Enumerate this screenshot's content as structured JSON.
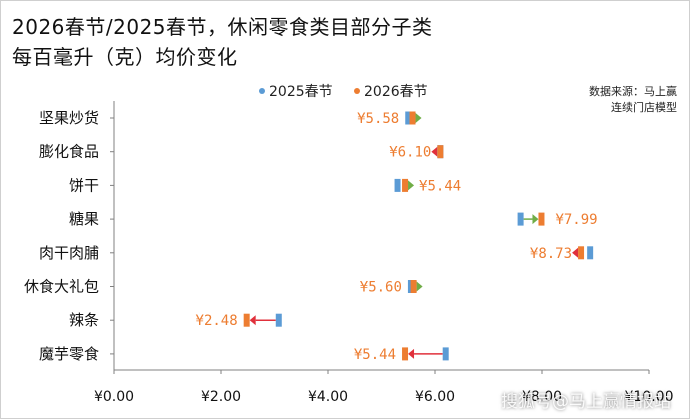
{
  "title_line1": "2026春节/2025春节，休闲零食类目部分子类",
  "title_line2": "每百毫升（克）均价变化",
  "source_line1": "数据来源：马上赢",
  "source_line2": "连续门店模型",
  "watermark": "搜狐号@马上赢情报站",
  "colors": {
    "y2025": "#5b9bd5",
    "y2026": "#ed7d31",
    "arrow_up": "#70ad47",
    "arrow_down": "#e0303b",
    "axis": "#808080"
  },
  "chart_data": {
    "type": "dot-plot",
    "title": "2026春节/2025春节，休闲零食类目部分子类 每百毫升（克）均价变化",
    "legend": [
      "2025春节",
      "2026春节"
    ],
    "legend_position": "top",
    "xlim": [
      0,
      10
    ],
    "x_ticks": [
      "¥0.00",
      "¥2.00",
      "¥4.00",
      "¥6.00",
      "¥8.00",
      "¥10.00"
    ],
    "grid": false,
    "categories": [
      "坚果炒货",
      "膨化食品",
      "饼干",
      "糖果",
      "肉干肉脯",
      "休食大礼包",
      "辣条",
      "魔芋零食"
    ],
    "series": [
      {
        "name": "2025春节",
        "values": [
          5.5,
          6.1,
          5.3,
          7.6,
          8.9,
          5.55,
          3.08,
          6.2
        ]
      },
      {
        "name": "2026春节",
        "values": [
          5.58,
          6.1,
          5.44,
          7.99,
          8.73,
          5.6,
          2.48,
          5.44
        ]
      }
    ],
    "data_labels": [
      "¥5.58",
      "¥6.10",
      "¥5.44",
      "¥7.99",
      "¥8.73",
      "¥5.60",
      "¥2.48",
      "¥5.44"
    ],
    "label_side": [
      "left",
      "left",
      "right",
      "right",
      "left",
      "left",
      "left",
      "left"
    ]
  }
}
